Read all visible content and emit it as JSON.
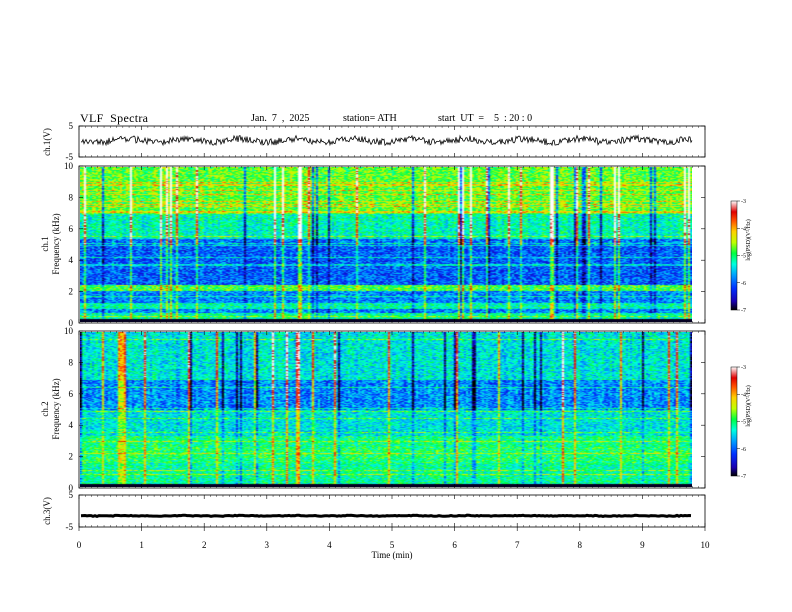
{
  "header": {
    "title": "VLF  Spectra",
    "date": "Jan.  7  ,  2025",
    "station": "station= ATH",
    "start_ut": "start  UT  =    5  : 20 : 0"
  },
  "chart_data": [
    {
      "type": "line",
      "panel": "ch1-waveform",
      "ylabel": "ch.1(V)",
      "ylim": [
        -5,
        5
      ],
      "yticks": [
        5,
        -5
      ],
      "xlim": [
        0,
        10
      ],
      "series_color": "#000000",
      "approx_level_v": 0.3
    },
    {
      "type": "heatmap",
      "panel": "ch1-spectrogram",
      "ylabel": "ch.1\nFrequency  (kHz)",
      "ylabel_line1": "ch.1",
      "ylabel_line2": "Frequency  (kHz)",
      "ylim": [
        0,
        10
      ],
      "yticks": [
        0,
        2,
        4,
        6,
        8,
        10
      ],
      "xlim": [
        0,
        9.85
      ],
      "colorbar": {
        "label": "log(PSD)(V²/Hz)",
        "ticks": [
          -3,
          -4,
          -5,
          -6,
          -7
        ],
        "range": [
          -7,
          -3
        ]
      }
    },
    {
      "type": "heatmap",
      "panel": "ch2-spectrogram",
      "ylabel_line1": "ch.2",
      "ylabel_line2": "Frequency  (kHz)",
      "ylim": [
        0,
        10
      ],
      "yticks": [
        0,
        2,
        4,
        6,
        8,
        10
      ],
      "xlim": [
        0,
        9.85
      ],
      "colorbar": {
        "label": "log(PSD)(V²/Hz)",
        "ticks": [
          -3,
          -4,
          -5,
          -6,
          -7
        ],
        "range": [
          -7,
          -3
        ]
      }
    },
    {
      "type": "line",
      "panel": "ch3-waveform",
      "ylabel": "ch.3(V)",
      "ylim": [
        -5,
        5
      ],
      "yticks": [
        5,
        -5
      ],
      "xlim": [
        0,
        10
      ],
      "approx_level_v": -1.5
    }
  ],
  "xaxis": {
    "label": "Time  (min)",
    "ticks": [
      "0",
      "1",
      "2",
      "3",
      "4",
      "5",
      "6",
      "7",
      "8",
      "9",
      "10"
    ]
  },
  "colors": {
    "spectrum": [
      "#000000",
      "#1a00b0",
      "#0030ff",
      "#00a0ff",
      "#00ffe0",
      "#00ff40",
      "#c0ff00",
      "#ffd000",
      "#ff5000",
      "#e00000",
      "#ffffff"
    ]
  }
}
